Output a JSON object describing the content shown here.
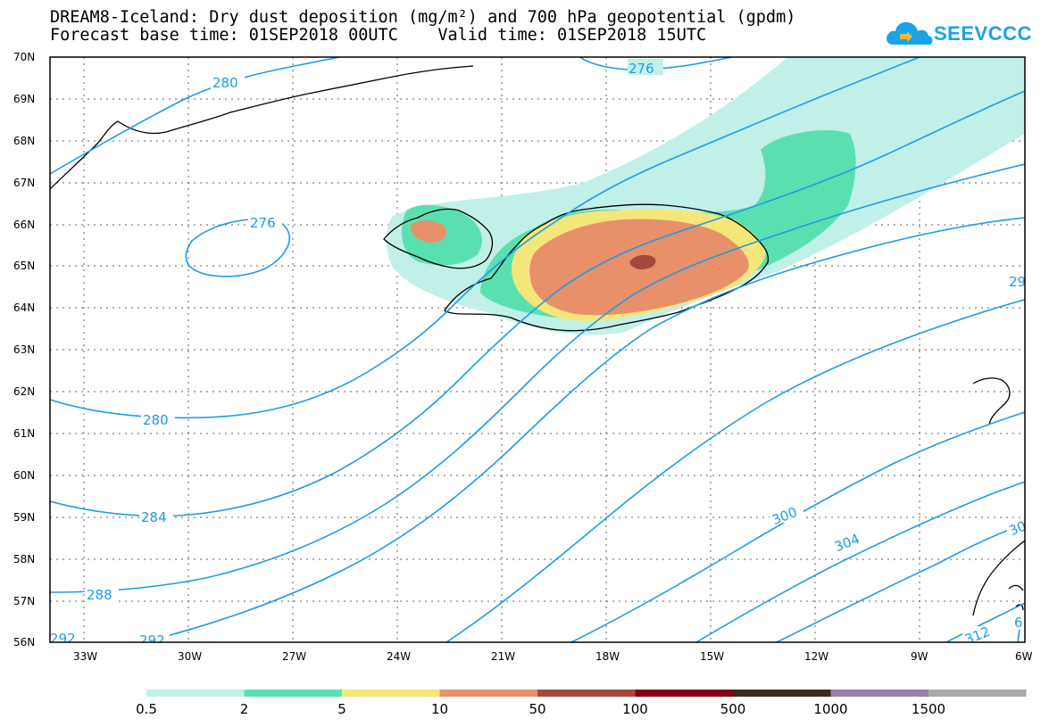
{
  "header": {
    "title_line1": "DREAM8-Iceland: Dry dust deposition (mg/m²) and 700 hPa geopotential (gpdm)",
    "title_line2": "Forecast base time: 01SEP2018 00UTC    Valid time: 01SEP2018 15UTC"
  },
  "logo": {
    "text": "SEEVCCC",
    "color": "#1aa3e8"
  },
  "map": {
    "lon_range": [
      -34,
      -6
    ],
    "lat_range": [
      56,
      70
    ],
    "lat_ticks": [
      "70N",
      "69N",
      "68N",
      "67N",
      "66N",
      "65N",
      "64N",
      "63N",
      "62N",
      "61N",
      "60N",
      "59N",
      "58N",
      "57N",
      "56N"
    ],
    "lon_ticks": [
      "33W",
      "30W",
      "27W",
      "24W",
      "21W",
      "18W",
      "15W",
      "12W",
      "9W",
      "6W"
    ],
    "contour_color": "#1e9be6",
    "contour_labels": [
      "276",
      "280",
      "276",
      "280",
      "284",
      "288",
      "292",
      "292",
      "29",
      "300",
      "304",
      "30",
      "312",
      "6"
    ]
  },
  "legend": {
    "labels": [
      "0.5",
      "2",
      "5",
      "10",
      "50",
      "100",
      "500",
      "1000",
      "1500"
    ],
    "colors": [
      "#c1f0e8",
      "#5ae0b0",
      "#f5e67a",
      "#e8906a",
      "#a6473e",
      "#800016",
      "#3a2a1c",
      "#9c7fa6",
      "#a9a9a9"
    ]
  }
}
